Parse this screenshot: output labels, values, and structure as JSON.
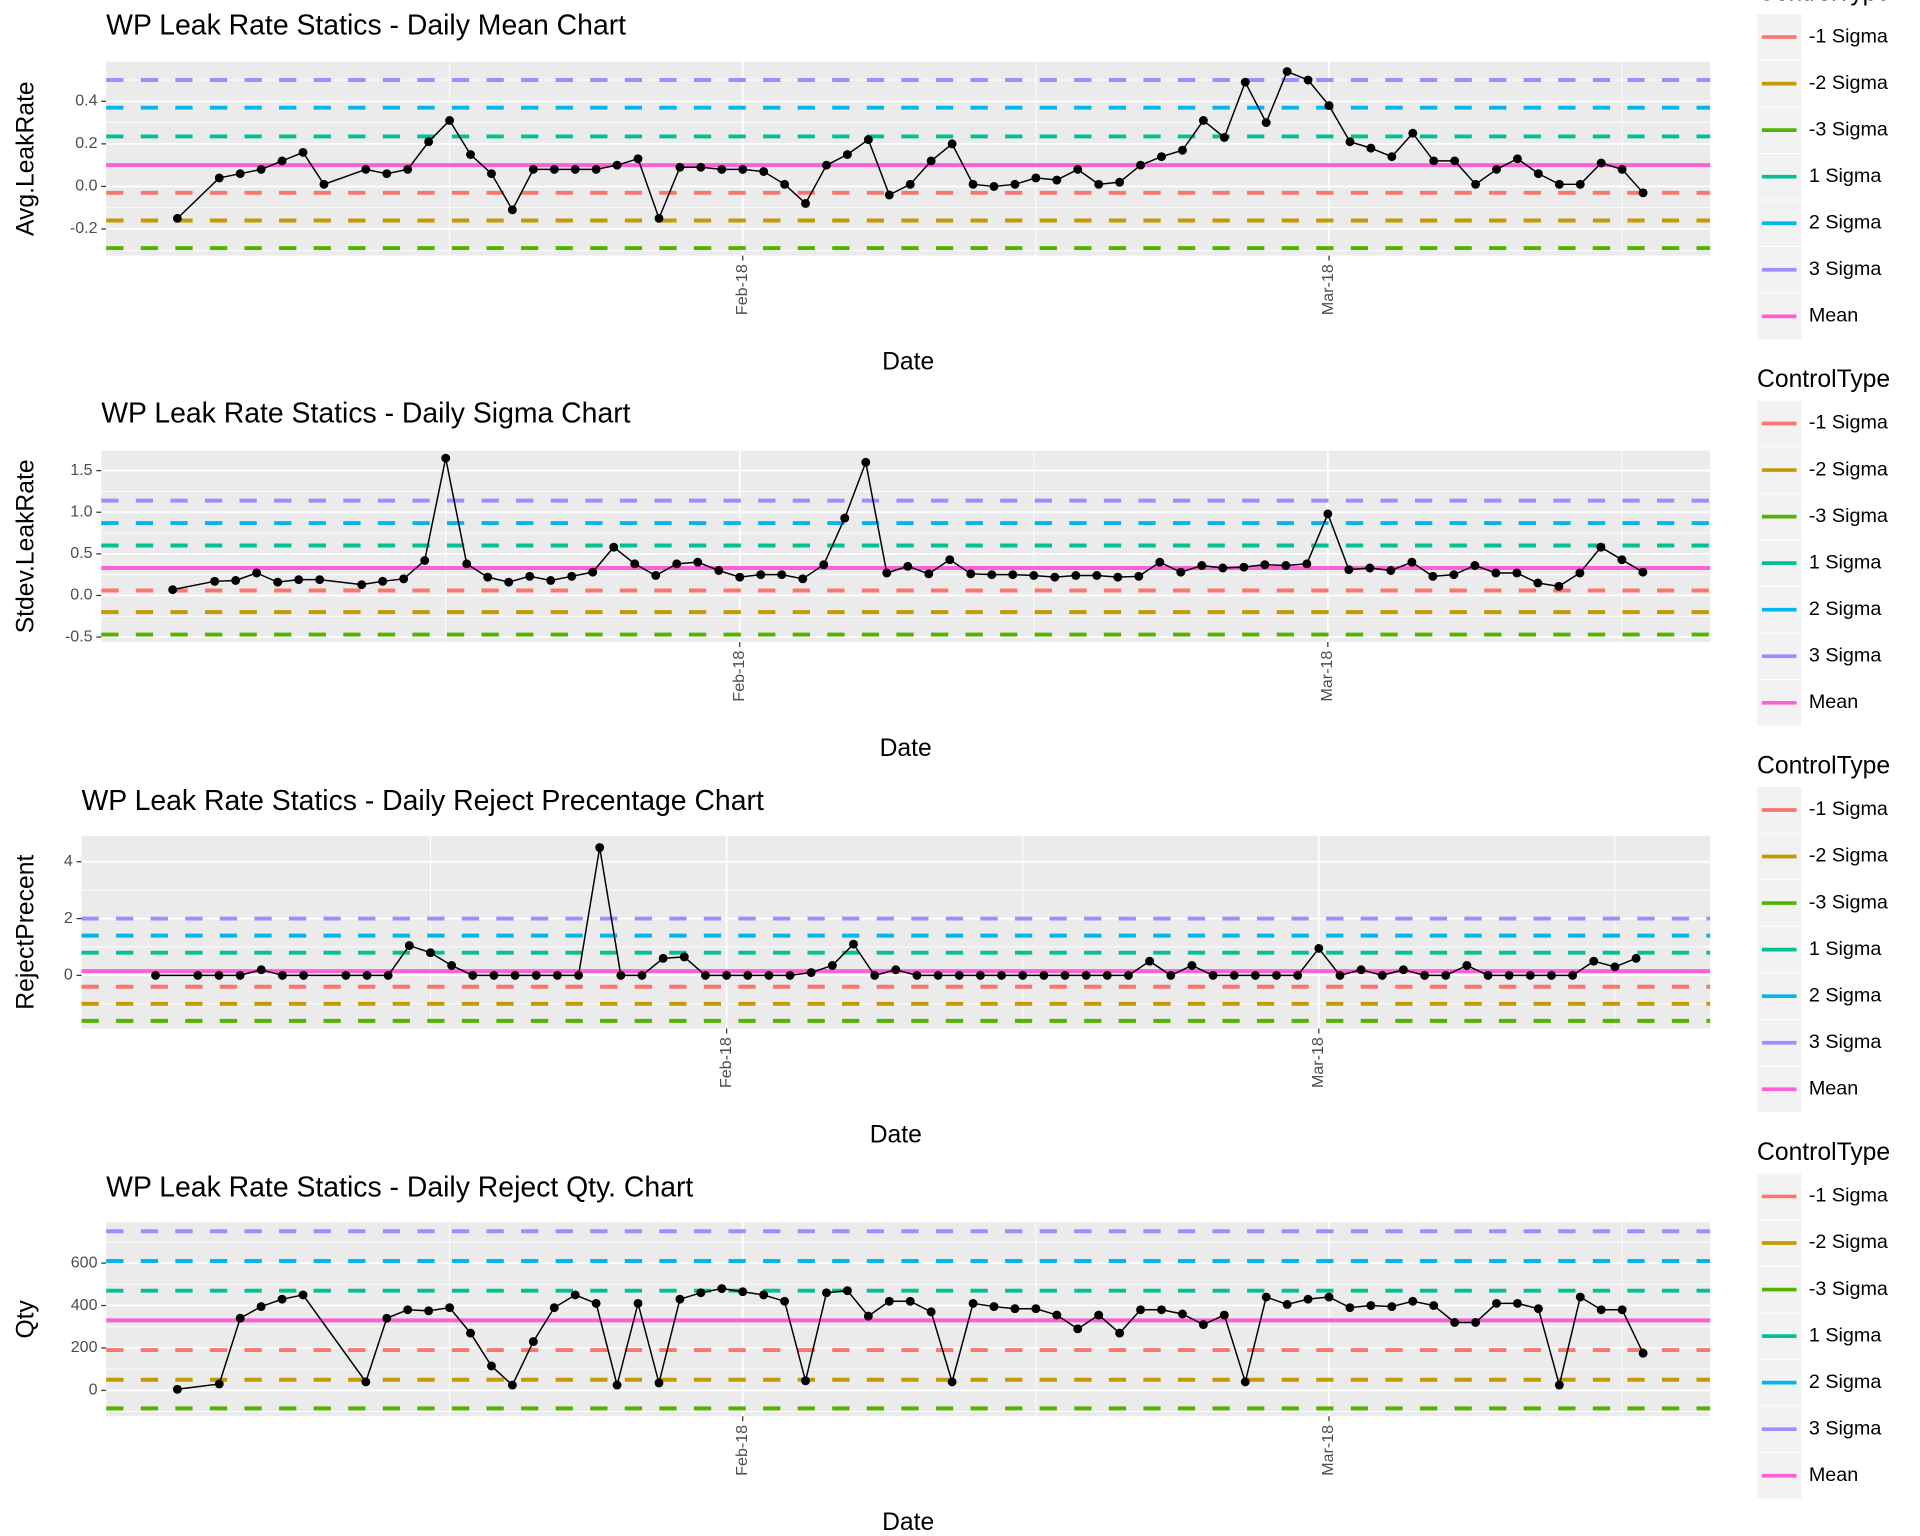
{
  "chart_data": [
    {
      "type": "line",
      "title": "WP Leak Rate Statics - Daily Mean Chart",
      "x_label": "Date",
      "y_label": "Avg.LeakRate",
      "legend_title": "ControlType",
      "color": "#000000",
      "grid": true,
      "xlim": [
        0.6,
        77.2
      ],
      "xticks": [
        {
          "value": 31,
          "label": "Feb-18"
        },
        {
          "value": 59,
          "label": "Mar-18"
        }
      ],
      "ylim": [
        -0.325,
        0.586
      ],
      "yticks": [
        -0.2,
        {
          "value": 0,
          "label": "0.0"
        },
        0.2,
        0.4
      ],
      "x": [
        4,
        6,
        7,
        8,
        9,
        10,
        11,
        13,
        14,
        15,
        16,
        17,
        18,
        19,
        20,
        21,
        22,
        23,
        24,
        25,
        26,
        27,
        28,
        29,
        30,
        31,
        32,
        33,
        34,
        35,
        36,
        37,
        38,
        39,
        40,
        41,
        42,
        43,
        44,
        45,
        46,
        47,
        48,
        49,
        50,
        51,
        52,
        53,
        54,
        55,
        56,
        57,
        58,
        59,
        60,
        61,
        62,
        63,
        64,
        65,
        66,
        67,
        68,
        69,
        70,
        71,
        72,
        73,
        74
      ],
      "values": [
        -0.15,
        0.04,
        0.06,
        0.08,
        0.12,
        0.16,
        0.01,
        0.08,
        0.06,
        0.08,
        0.21,
        0.31,
        0.15,
        0.06,
        -0.11,
        0.08,
        0.08,
        0.08,
        0.08,
        0.1,
        0.13,
        -0.15,
        0.09,
        0.09,
        0.08,
        0.08,
        0.07,
        0.01,
        -0.08,
        0.1,
        0.15,
        0.22,
        -0.04,
        0.01,
        0.12,
        0.2,
        0.01,
        0,
        0.01,
        0.04,
        0.03,
        0.08,
        0.01,
        0.02,
        0.1,
        0.14,
        0.17,
        0.31,
        0.23,
        0.49,
        0.3,
        0.54,
        0.5,
        0.38,
        0.21,
        0.18,
        0.14,
        0.25,
        0.12,
        0.12,
        0.01,
        0.08,
        0.13,
        0.06,
        0.01,
        0.01,
        0.11,
        0.08,
        -0.03
      ],
      "control_lines": [
        {
          "name": "-1 Sigma",
          "color": "#F8766D",
          "value": -0.03
        },
        {
          "name": "-2 Sigma",
          "color": "#C49A00",
          "value": -0.16
        },
        {
          "name": "-3 Sigma",
          "color": "#53B400",
          "value": -0.29
        },
        {
          "name": "1 Sigma",
          "color": "#00C094",
          "value": 0.235
        },
        {
          "name": "2 Sigma",
          "color": "#00B6EB",
          "value": 0.37
        },
        {
          "name": "3 Sigma",
          "color": "#A58AFF",
          "value": 0.5
        },
        {
          "name": "Mean",
          "color": "#FB61D7",
          "value": 0.1
        }
      ]
    },
    {
      "type": "line",
      "title": "WP Leak Rate Statics - Daily Sigma Chart",
      "x_label": "Date",
      "y_label": "Stdev.LeakRate",
      "legend_title": "ControlType",
      "color": "#000000",
      "grid": true,
      "xlim": [
        0.6,
        77.2
      ],
      "xticks": [
        {
          "value": 31,
          "label": "Feb-18"
        },
        {
          "value": 59,
          "label": "Mar-18"
        }
      ],
      "ylim": [
        -0.56,
        1.74
      ],
      "yticks": [
        -0.5,
        {
          "value": 0,
          "label": "0.0"
        },
        0.5,
        {
          "value": 1,
          "label": "1.0"
        },
        1.5
      ],
      "x": [
        4,
        6,
        7,
        8,
        9,
        10,
        11,
        13,
        14,
        15,
        16,
        17,
        18,
        19,
        20,
        21,
        22,
        23,
        24,
        25,
        26,
        27,
        28,
        29,
        30,
        31,
        32,
        33,
        34,
        35,
        36,
        37,
        38,
        39,
        40,
        41,
        42,
        43,
        44,
        45,
        46,
        47,
        48,
        49,
        50,
        51,
        52,
        53,
        54,
        55,
        56,
        57,
        58,
        59,
        60,
        61,
        62,
        63,
        64,
        65,
        66,
        67,
        68,
        69,
        70,
        71,
        72,
        73,
        74
      ],
      "values": [
        0.07,
        0.17,
        0.18,
        0.27,
        0.16,
        0.19,
        0.19,
        0.13,
        0.17,
        0.2,
        0.42,
        1.65,
        0.38,
        0.22,
        0.16,
        0.23,
        0.18,
        0.23,
        0.28,
        0.58,
        0.38,
        0.24,
        0.38,
        0.4,
        0.3,
        0.22,
        0.25,
        0.25,
        0.2,
        0.37,
        0.93,
        1.6,
        0.27,
        0.35,
        0.26,
        0.43,
        0.26,
        0.25,
        0.25,
        0.24,
        0.22,
        0.24,
        0.24,
        0.22,
        0.23,
        0.4,
        0.28,
        0.36,
        0.33,
        0.34,
        0.37,
        0.36,
        0.38,
        0.98,
        0.31,
        0.33,
        0.3,
        0.4,
        0.23,
        0.25,
        0.36,
        0.27,
        0.27,
        0.15,
        0.11,
        0.27,
        0.58,
        0.43,
        0.28
      ],
      "control_lines": [
        {
          "name": "-1 Sigma",
          "color": "#F8766D",
          "value": 0.06
        },
        {
          "name": "-2 Sigma",
          "color": "#C49A00",
          "value": -0.2
        },
        {
          "name": "-3 Sigma",
          "color": "#53B400",
          "value": -0.47
        },
        {
          "name": "1 Sigma",
          "color": "#00C094",
          "value": 0.6
        },
        {
          "name": "2 Sigma",
          "color": "#00B6EB",
          "value": 0.87
        },
        {
          "name": "3 Sigma",
          "color": "#A58AFF",
          "value": 1.14
        },
        {
          "name": "Mean",
          "color": "#FB61D7",
          "value": 0.33
        }
      ]
    },
    {
      "type": "line",
      "title": "WP Leak Rate Statics - Daily Reject Precentage Chart",
      "x_label": "Date",
      "y_label": "RejectPrecent",
      "legend_title": "ControlType",
      "color": "#000000",
      "grid": true,
      "xlim": [
        0.5,
        77.5
      ],
      "xticks": [
        {
          "value": 31,
          "label": "Feb-18"
        },
        {
          "value": 59,
          "label": "Mar-18"
        }
      ],
      "ylim": [
        -1.87,
        4.91
      ],
      "yticks": [
        0,
        2,
        4
      ],
      "x": [
        4,
        6,
        7,
        8,
        9,
        10,
        11,
        13,
        14,
        15,
        16,
        17,
        18,
        19,
        20,
        21,
        22,
        23,
        24,
        25,
        26,
        27,
        28,
        29,
        30,
        31,
        32,
        33,
        34,
        35,
        36,
        37,
        38,
        39,
        40,
        41,
        42,
        43,
        44,
        45,
        46,
        47,
        48,
        49,
        50,
        51,
        52,
        53,
        54,
        55,
        56,
        57,
        58,
        59,
        60,
        61,
        62,
        63,
        64,
        65,
        66,
        67,
        68,
        69,
        70,
        71,
        72,
        73,
        74
      ],
      "values": [
        0,
        0,
        0,
        0,
        0.2,
        0,
        0,
        0,
        0,
        0,
        1.05,
        0.8,
        0.35,
        0,
        0,
        0,
        0,
        0,
        0,
        4.5,
        0,
        0,
        0.6,
        0.65,
        0,
        0,
        0,
        0,
        0,
        0.1,
        0.35,
        1.1,
        0,
        0.2,
        0,
        0,
        0,
        0,
        0,
        0,
        0,
        0,
        0,
        0,
        0,
        0.5,
        0,
        0.35,
        0,
        0,
        0,
        0,
        0,
        0.95,
        0,
        0.2,
        0,
        0.2,
        0,
        0,
        0.35,
        0,
        0,
        0,
        0,
        0,
        0.5,
        0.3,
        0.6
      ],
      "control_lines": [
        {
          "name": "-1 Sigma",
          "color": "#F8766D",
          "value": -0.4
        },
        {
          "name": "-2 Sigma",
          "color": "#C49A00",
          "value": -1.0
        },
        {
          "name": "-3 Sigma",
          "color": "#53B400",
          "value": -1.6
        },
        {
          "name": "1 Sigma",
          "color": "#00C094",
          "value": 0.8
        },
        {
          "name": "2 Sigma",
          "color": "#00B6EB",
          "value": 1.4
        },
        {
          "name": "3 Sigma",
          "color": "#A58AFF",
          "value": 2.0
        },
        {
          "name": "Mean",
          "color": "#FB61D7",
          "value": 0.15
        }
      ]
    },
    {
      "type": "line",
      "title": "WP Leak Rate Statics - Daily Reject Qty. Chart",
      "x_label": "Date",
      "y_label": "Qty",
      "legend_title": "ControlType",
      "color": "#000000",
      "grid": true,
      "xlim": [
        0.6,
        77.2
      ],
      "xticks": [
        {
          "value": 31,
          "label": "Feb-18"
        },
        {
          "value": 59,
          "label": "Mar-18"
        }
      ],
      "ylim": [
        -122,
        792
      ],
      "yticks": [
        0,
        200,
        400,
        600
      ],
      "x": [
        4,
        6,
        7,
        8,
        9,
        10,
        13,
        14,
        15,
        16,
        17,
        18,
        19,
        20,
        21,
        22,
        23,
        24,
        25,
        26,
        27,
        28,
        29,
        30,
        31,
        32,
        33,
        34,
        35,
        36,
        37,
        38,
        39,
        40,
        41,
        42,
        43,
        44,
        45,
        46,
        47,
        48,
        49,
        50,
        51,
        52,
        53,
        54,
        55,
        56,
        57,
        58,
        59,
        60,
        61,
        62,
        63,
        64,
        65,
        66,
        67,
        68,
        69,
        70,
        71,
        72,
        73,
        74
      ],
      "values": [
        5,
        30,
        340,
        395,
        430,
        450,
        40,
        340,
        380,
        375,
        390,
        270,
        115,
        25,
        230,
        390,
        450,
        410,
        25,
        410,
        35,
        430,
        460,
        480,
        465,
        450,
        420,
        45,
        460,
        470,
        350,
        420,
        420,
        370,
        40,
        410,
        395,
        385,
        385,
        355,
        290,
        355,
        270,
        380,
        380,
        360,
        310,
        355,
        40,
        440,
        405,
        430,
        440,
        390,
        400,
        395,
        420,
        400,
        320,
        320,
        410,
        410,
        385,
        25,
        440,
        380,
        380,
        175
      ],
      "control_lines": [
        {
          "name": "-1 Sigma",
          "color": "#F8766D",
          "value": 190
        },
        {
          "name": "-2 Sigma",
          "color": "#C49A00",
          "value": 50
        },
        {
          "name": "-3 Sigma",
          "color": "#53B400",
          "value": -85
        },
        {
          "name": "1 Sigma",
          "color": "#00C094",
          "value": 470
        },
        {
          "name": "2 Sigma",
          "color": "#00B6EB",
          "value": 610
        },
        {
          "name": "3 Sigma",
          "color": "#A58AFF",
          "value": 750
        },
        {
          "name": "Mean",
          "color": "#FB61D7",
          "value": 330
        }
      ]
    }
  ]
}
